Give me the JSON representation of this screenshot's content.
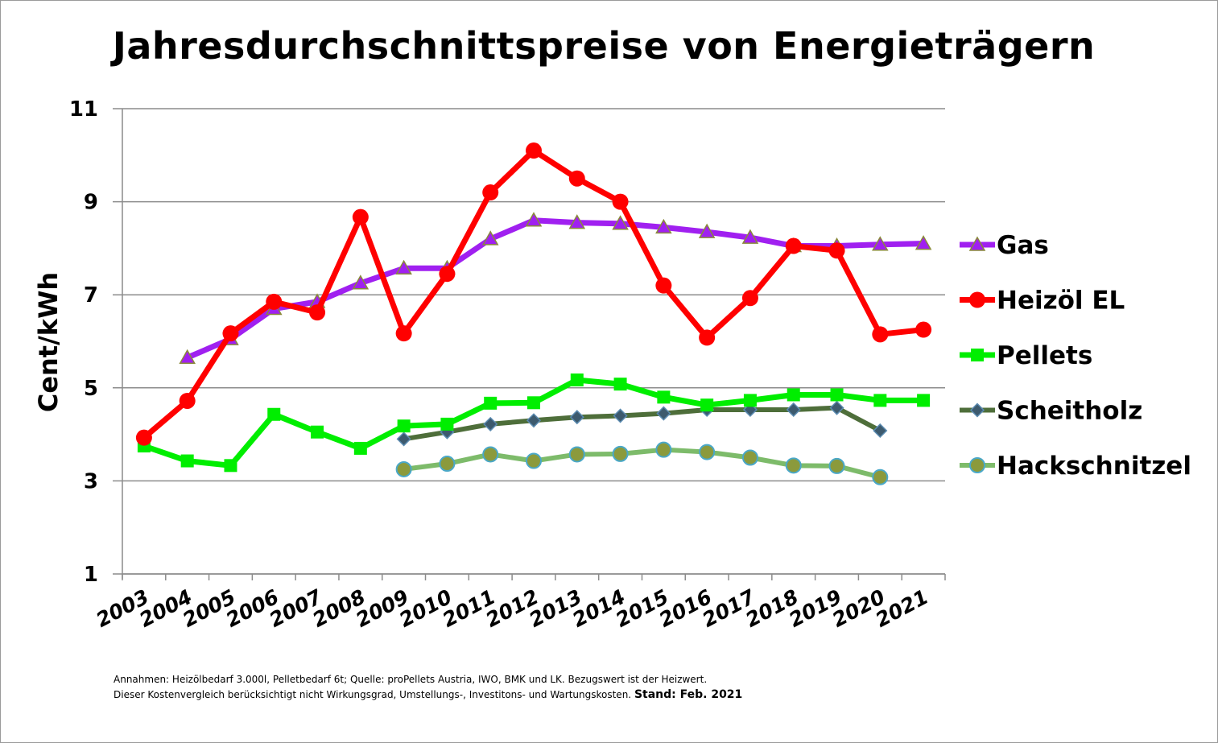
{
  "chart_data": {
    "type": "line",
    "title": "Jahresdurchschnittspreise von Energieträgern",
    "ylabel": "Cent/kWh",
    "xlabel": "",
    "ylim": [
      1,
      11
    ],
    "yticks": [
      "1",
      "3",
      "5",
      "7",
      "9",
      "11"
    ],
    "grid": "horizontal",
    "legend_position": "right",
    "categories": [
      "2003",
      "2004",
      "2005",
      "2006",
      "2007",
      "2008",
      "2009",
      "2010",
      "2011",
      "2012",
      "2013",
      "2014",
      "2015",
      "2016",
      "2017",
      "2018",
      "2019",
      "2020",
      "2021"
    ],
    "series": [
      {
        "name": "Gas",
        "color": "#a020f0",
        "marker": "triangle",
        "line_width": 7,
        "values": [
          null,
          5.65,
          6.05,
          6.7,
          6.85,
          7.25,
          7.57,
          7.57,
          8.2,
          8.6,
          8.55,
          8.53,
          8.45,
          8.35,
          8.23,
          8.05,
          8.05,
          8.08,
          8.1
        ]
      },
      {
        "name": "Heizöl EL",
        "color": "#ff0000",
        "marker": "circle",
        "line_width": 7,
        "values": [
          3.93,
          4.72,
          6.17,
          6.85,
          6.62,
          8.67,
          6.17,
          7.45,
          9.2,
          10.1,
          9.5,
          9.0,
          7.2,
          6.08,
          6.93,
          8.05,
          7.95,
          6.15,
          6.25
        ]
      },
      {
        "name": "Pellets",
        "color": "#00ee00",
        "marker": "square",
        "line_width": 7,
        "values": [
          3.75,
          3.43,
          3.33,
          4.43,
          4.05,
          3.7,
          4.18,
          4.22,
          4.67,
          4.68,
          5.17,
          5.08,
          4.8,
          4.63,
          4.73,
          4.85,
          4.85,
          4.73,
          4.73
        ]
      },
      {
        "name": "Scheitholz",
        "color": "#4e6e3a",
        "marker": "diamond",
        "line_width": 6,
        "values": [
          null,
          null,
          null,
          null,
          null,
          null,
          3.9,
          4.05,
          4.22,
          4.3,
          4.37,
          4.4,
          4.45,
          4.53,
          4.53,
          4.53,
          4.57,
          4.08,
          null
        ]
      },
      {
        "name": "Hackschnitzel",
        "color": "#7dbb6a",
        "marker": "circle-outline",
        "line_width": 6,
        "values": [
          null,
          null,
          null,
          null,
          null,
          null,
          3.25,
          3.37,
          3.57,
          3.43,
          3.57,
          3.58,
          3.67,
          3.62,
          3.5,
          3.33,
          3.32,
          3.08,
          null
        ]
      }
    ]
  },
  "footnote": {
    "line1": "Annahmen: Heizölbedarf 3.000l, Pelletbedarf 6t; Quelle: proPellets Austria, IWO, BMK und LK. Bezugswert ist der Heizwert.",
    "line2": "Dieser Kostenvergleich berücksichtigt nicht Wirkungsgrad, Umstellungs-, Investitons- und  Wartungskosten.",
    "stand": "Stand: Feb. 2021"
  }
}
